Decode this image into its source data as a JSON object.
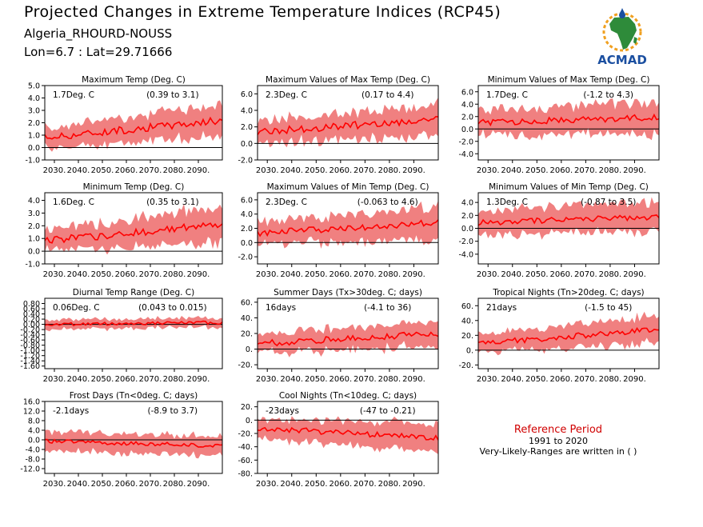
{
  "header": {
    "title": "Projected Changes in Extreme Temperature Indices (RCP45)",
    "location": "Algeria_RHOURD-NOUSS",
    "lonlat": "Lon=6.7 : Lat=29.71666"
  },
  "logo": {
    "text": "ACMAD",
    "icon": "africa-map-icon",
    "green": "#2e8b3a",
    "blue": "#1b4fa0",
    "orange": "#f0a020"
  },
  "reference": {
    "title": "Reference Period",
    "period": "1991 to 2020",
    "note": "Very-Likely-Ranges are written in ( )"
  },
  "colors": {
    "band": "#f08080",
    "mean": "#ff0000",
    "zero": "#000000"
  },
  "chart_data": [
    {
      "type": "area",
      "title": "Maximum Temp (Deg. C)",
      "change": "1.7Deg. C",
      "range_label": "(0.39 to 3.1)",
      "x_start": 2026,
      "x_end": 2100,
      "ylim": [
        -1.0,
        5.0
      ],
      "ticks": [
        "5.0",
        "4.0",
        "3.0",
        "2.0",
        "1.0",
        "0.0",
        "-1.0"
      ],
      "mean_start": 0.8,
      "mean_end": 2.2,
      "spread_start": 0.8,
      "spread_end": 1.3,
      "osc": 0.3
    },
    {
      "type": "area",
      "title": "Maximum Values of Max Temp (Deg. C)",
      "change": "2.3Deg. C",
      "range_label": "(0.17 to 4.4)",
      "x_start": 2026,
      "x_end": 2100,
      "ylim": [
        -2.0,
        7.0
      ],
      "ticks": [
        "6.0",
        "4.0",
        "2.0",
        "0.0",
        "-2.0"
      ],
      "mean_start": 1.4,
      "mean_end": 2.9,
      "spread_start": 1.3,
      "spread_end": 1.9,
      "osc": 0.45
    },
    {
      "type": "area",
      "title": "Minimum Values of Max Temp (Deg. C)",
      "change": "1.7Deg. C",
      "range_label": "(-1.2 to 4.3)",
      "x_start": 2026,
      "x_end": 2100,
      "ylim": [
        -5.0,
        7.0
      ],
      "ticks": [
        "6.0",
        "4.0",
        "2.0",
        "0.0",
        "-2.0",
        "-4.0"
      ],
      "mean_start": 1.0,
      "mean_end": 1.9,
      "spread_start": 2.0,
      "spread_end": 2.6,
      "osc": 0.5
    },
    {
      "type": "area",
      "title": "Minimum Temp (Deg. C)",
      "change": "1.6Deg. C",
      "range_label": "(0.35 to 3.1)",
      "x_start": 2026,
      "x_end": 2100,
      "ylim": [
        -1.0,
        4.6
      ],
      "ticks": [
        "4.0",
        "3.0",
        "2.0",
        "1.0",
        "0.0",
        "-1.0"
      ],
      "mean_start": 0.8,
      "mean_end": 2.1,
      "spread_start": 0.8,
      "spread_end": 1.4,
      "osc": 0.3
    },
    {
      "type": "area",
      "title": "Maximum Values of Min Temp (Deg. C)",
      "change": "2.3Deg. C",
      "range_label": "(-0.063 to 4.6)",
      "x_start": 2026,
      "x_end": 2100,
      "ylim": [
        -3.0,
        7.0
      ],
      "ticks": [
        "6.0",
        "4.0",
        "2.0",
        "0.0",
        "-2.0"
      ],
      "mean_start": 1.3,
      "mean_end": 2.8,
      "spread_start": 1.6,
      "spread_end": 2.2,
      "osc": 0.45
    },
    {
      "type": "area",
      "title": "Minimum Values of Min Temp (Deg. C)",
      "change": "1.3Deg. C",
      "range_label": "(-0.87 to 3.5)",
      "x_start": 2026,
      "x_end": 2100,
      "ylim": [
        -5.5,
        5.5
      ],
      "ticks": [
        "4.0",
        "2.0",
        "0.0",
        "-2.0",
        "-4.0"
      ],
      "mean_start": 0.9,
      "mean_end": 1.8,
      "spread_start": 1.8,
      "spread_end": 2.4,
      "osc": 0.45
    },
    {
      "type": "area",
      "title": "Diurnal Temp Range (Deg. C)",
      "change": "0.06Deg. C",
      "range_label": "(0.043 to 0.015)",
      "x_start": 2026,
      "x_end": 2100,
      "ylim": [
        -1.7,
        1.0
      ],
      "ticks": [
        "0.80",
        "0.60",
        "0.40",
        "0.20",
        "0.00",
        "-0.20",
        "-0.40",
        "-0.60",
        "-0.80",
        "-1.00",
        "-1.20",
        "-1.40",
        "-1.60"
      ],
      "mean_start": 0.0,
      "mean_end": 0.07,
      "spread_start": 0.18,
      "spread_end": 0.18,
      "osc": 0.06
    },
    {
      "type": "area",
      "title": "Summer Days (Tx>30deg. C; days)",
      "change": "16days",
      "range_label": "(-4.1 to 36)",
      "x_start": 2026,
      "x_end": 2100,
      "ylim": [
        -25,
        65
      ],
      "ticks": [
        "60.",
        "40.",
        "20.",
        "0.",
        "-20."
      ],
      "mean_start": 7,
      "mean_end": 20,
      "spread_start": 12,
      "spread_end": 16,
      "osc": 4
    },
    {
      "type": "area",
      "title": "Tropical Nights (Tn>20deg. C; days)",
      "change": "21days",
      "range_label": "(-1.5 to 45)",
      "x_start": 2026,
      "x_end": 2100,
      "ylim": [
        -25,
        70
      ],
      "ticks": [
        "60.",
        "40.",
        "20.",
        "0.",
        "-20."
      ],
      "mean_start": 9,
      "mean_end": 28,
      "spread_start": 12,
      "spread_end": 18,
      "osc": 4
    },
    {
      "type": "area",
      "title": "Frost Days (Tn<0deg. C; days)",
      "change": "-2.1days",
      "range_label": "(-8.9 to 3.7)",
      "x_start": 2026,
      "x_end": 2100,
      "ylim": [
        -14,
        16
      ],
      "ticks": [
        "16.0",
        "12.0",
        "8.0",
        "4.0",
        "0.0",
        "-4.0",
        "-8.0",
        "-12.0"
      ],
      "mean_start": -0.5,
      "mean_end": -2.5,
      "spread_start": 4,
      "spread_end": 4,
      "osc": 0.8
    },
    {
      "type": "area",
      "title": "Cool Nights (Tn<10deg. C; days)",
      "change": "-23days",
      "range_label": "(-47 to -0.21)",
      "x_start": 2026,
      "x_end": 2100,
      "ylim": [
        -80,
        28
      ],
      "ticks": [
        "20.",
        "0.",
        "-20.",
        "-40.",
        "-60.",
        "-80."
      ],
      "mean_start": -12,
      "mean_end": -27,
      "spread_start": 14,
      "spread_end": 22,
      "osc": 4
    }
  ],
  "x_tick_labels": [
    "2030.",
    "2040.",
    "2050.",
    "2060.",
    "2070.",
    "2080.",
    "2090."
  ],
  "x_tick_values": [
    2030,
    2040,
    2050,
    2060,
    2070,
    2080,
    2090
  ]
}
